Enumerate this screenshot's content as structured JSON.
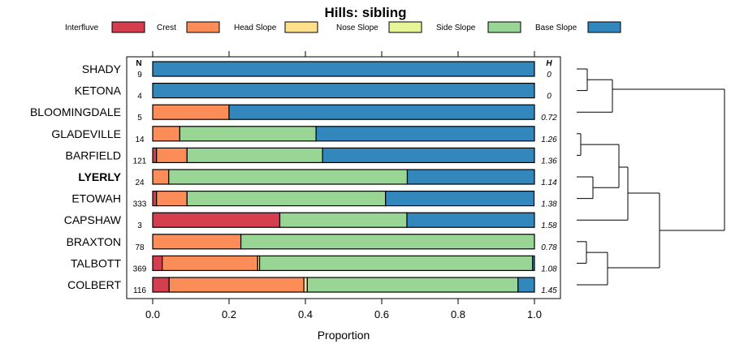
{
  "chart_data": {
    "type": "stacked-horizontal-bar",
    "title": "Hills: sibling",
    "xlabel": "Proportion",
    "ylabel": "",
    "xlim": [
      0,
      1
    ],
    "x_ticks": [
      0,
      0.2,
      0.4,
      0.6,
      0.8,
      1
    ],
    "x_tick_labels": [
      "0.0",
      "0.2",
      "0.4",
      "0.6",
      "0.8",
      "1.0"
    ],
    "left_column_header": "N",
    "right_column_header": "H",
    "legend": [
      {
        "name": "Interfluve",
        "color": "#d53e4f"
      },
      {
        "name": "Crest",
        "color": "#fc8d59"
      },
      {
        "name": "Head Slope",
        "color": "#fee08b"
      },
      {
        "name": "Nose Slope",
        "color": "#e6f598"
      },
      {
        "name": "Side Slope",
        "color": "#99d594"
      },
      {
        "name": "Base Slope",
        "color": "#3288bd"
      }
    ],
    "highlighted_category": "LYERLY",
    "categories": [
      "SHADY",
      "KETONA",
      "BLOOMINGDALE",
      "GLADEVILLE",
      "BARFIELD",
      "LYERLY",
      "ETOWAH",
      "CAPSHAW",
      "BRAXTON",
      "TALBOTT",
      "COLBERT"
    ],
    "n": [
      "9",
      "4",
      "5",
      "14",
      "121",
      "24",
      "333",
      "3",
      "78",
      "369",
      "116"
    ],
    "h": [
      "0",
      "0",
      "0.72",
      "1.26",
      "1.36",
      "1.14",
      "1.38",
      "1.58",
      "0.78",
      "1.08",
      "1.45"
    ],
    "series": [
      {
        "name": "Interfluve",
        "values": [
          0,
          0,
          0,
          0,
          0.01,
          0,
          0.01,
          0.333,
          0,
          0.025,
          0.043
        ]
      },
      {
        "name": "Crest",
        "values": [
          0,
          0,
          0.2,
          0.071,
          0.08,
          0.042,
          0.08,
          0,
          0.231,
          0.25,
          0.353
        ]
      },
      {
        "name": "Head Slope",
        "values": [
          0,
          0,
          0,
          0,
          0,
          0,
          0,
          0,
          0,
          0.005,
          0.009
        ]
      },
      {
        "name": "Nose Slope",
        "values": [
          0,
          0,
          0,
          0,
          0,
          0,
          0,
          0,
          0,
          0,
          0
        ]
      },
      {
        "name": "Side Slope",
        "values": [
          0,
          0,
          0,
          0.357,
          0.355,
          0.625,
          0.52,
          0.333,
          0.769,
          0.715,
          0.552
        ]
      },
      {
        "name": "Base Slope",
        "values": [
          1,
          1,
          0.8,
          0.572,
          0.555,
          0.333,
          0.389,
          0.334,
          0,
          0.005,
          0.043
        ]
      }
    ]
  }
}
